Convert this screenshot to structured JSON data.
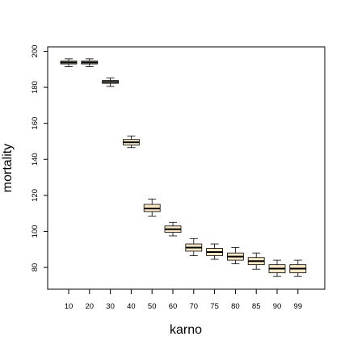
{
  "chart_data": {
    "type": "boxplot",
    "title": "",
    "xlabel": "karno",
    "ylabel": "mortality",
    "categories": [
      "10",
      "20",
      "30",
      "40",
      "50",
      "60",
      "70",
      "75",
      "80",
      "85",
      "90",
      "99"
    ],
    "yticks": [
      80,
      100,
      120,
      140,
      160,
      180,
      200
    ],
    "ylim": [
      68,
      202
    ],
    "grid": false,
    "boxes": [
      {
        "category": "10",
        "whisker_low": 191.5,
        "q1": 193.0,
        "median": 193.8,
        "q3": 194.6,
        "whisker_high": 195.8
      },
      {
        "category": "20",
        "whisker_low": 191.5,
        "q1": 193.0,
        "median": 193.8,
        "q3": 194.6,
        "whisker_high": 195.8
      },
      {
        "category": "30",
        "whisker_low": 180.5,
        "q1": 182.2,
        "median": 183.0,
        "q3": 183.8,
        "whisker_high": 185.2
      },
      {
        "category": "40",
        "whisker_low": 146.5,
        "q1": 148.0,
        "median": 149.5,
        "q3": 151.0,
        "whisker_high": 153.0
      },
      {
        "category": "50",
        "whisker_low": 108.5,
        "q1": 111.0,
        "median": 112.7,
        "q3": 115.0,
        "whisker_high": 118.0
      },
      {
        "category": "60",
        "whisker_low": 97.5,
        "q1": 99.5,
        "median": 101.2,
        "q3": 103.0,
        "whisker_high": 105.0
      },
      {
        "category": "70",
        "whisker_low": 86.5,
        "q1": 89.0,
        "median": 91.0,
        "q3": 93.0,
        "whisker_high": 96.0
      },
      {
        "category": "75",
        "whisker_low": 84.5,
        "q1": 86.5,
        "median": 88.5,
        "q3": 90.5,
        "whisker_high": 93.0
      },
      {
        "category": "80",
        "whisker_low": 82.0,
        "q1": 84.0,
        "median": 86.0,
        "q3": 88.0,
        "whisker_high": 91.0
      },
      {
        "category": "85",
        "whisker_low": 79.0,
        "q1": 81.5,
        "median": 83.5,
        "q3": 85.5,
        "whisker_high": 88.0
      },
      {
        "category": "90",
        "whisker_low": 75.0,
        "q1": 77.0,
        "median": 79.3,
        "q3": 81.5,
        "whisker_high": 84.0
      },
      {
        "category": "99",
        "whisker_low": 75.0,
        "q1": 77.0,
        "median": 79.3,
        "q3": 81.5,
        "whisker_high": 84.0
      }
    ],
    "colors": {
      "box_fill": "#f8e7c4",
      "box_stroke": "#000000",
      "median": "#000000",
      "axis": "#000000",
      "background": "#ffffff"
    }
  }
}
